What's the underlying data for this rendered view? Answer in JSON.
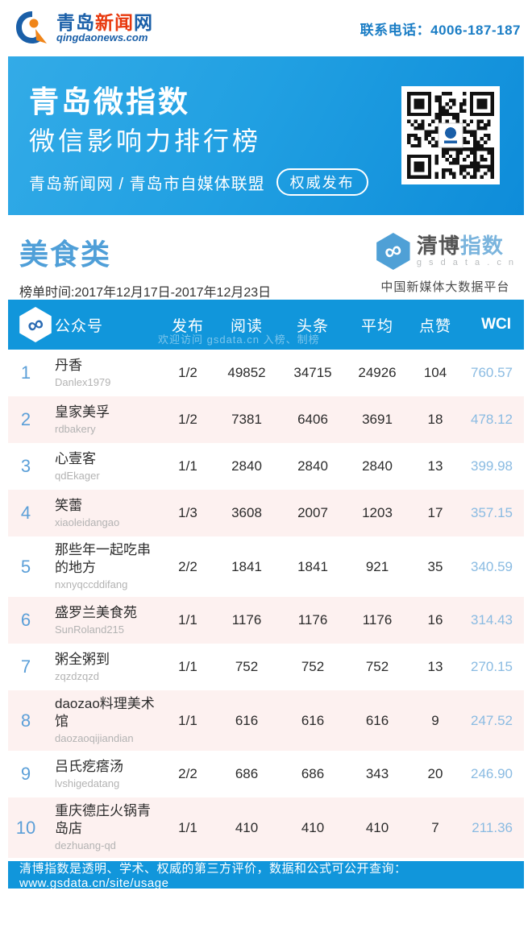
{
  "header": {
    "logo_part1": "青岛",
    "logo_part2": "新闻",
    "logo_part3": "网",
    "logo_domain": "qingdaonews.com",
    "contact": "联系电话：4006-187-187"
  },
  "banner": {
    "title": "青岛微指数",
    "subtitle": "微信影响力排行榜",
    "orgs": "青岛新闻网 / 青岛市自媒体联盟",
    "badge": "权威发布"
  },
  "report": {
    "category": "美食类",
    "period": "榜单时间:2017年12月17日-2017年12月23日"
  },
  "gsdata_logo": {
    "infinity_glyph": "∞",
    "brand_part1": "清博",
    "brand_part2": "指数",
    "domain": "g s d a t a . c n",
    "tagline": "中国新媒体大数据平台"
  },
  "table": {
    "columns": {
      "account": "公众号",
      "publish": "发布",
      "read": "阅读",
      "headline": "头条",
      "average": "平均",
      "likes": "点赞",
      "wci": "WCI"
    },
    "welcome": "欢迎访问 gsdata.cn 入榜、制榜",
    "rows": [
      {
        "rank": "1",
        "name": "丹香",
        "id": "Danlex1979",
        "publish": "1/2",
        "read": "49852",
        "headline": "34715",
        "average": "24926",
        "likes": "104",
        "wci": "760.57"
      },
      {
        "rank": "2",
        "name": "皇家美孚",
        "id": "rdbakery",
        "publish": "1/2",
        "read": "7381",
        "headline": "6406",
        "average": "3691",
        "likes": "18",
        "wci": "478.12"
      },
      {
        "rank": "3",
        "name": "心壹客",
        "id": "qdEkager",
        "publish": "1/1",
        "read": "2840",
        "headline": "2840",
        "average": "2840",
        "likes": "13",
        "wci": "399.98"
      },
      {
        "rank": "4",
        "name": "笑蕾",
        "id": "xiaoleidangao",
        "publish": "1/3",
        "read": "3608",
        "headline": "2007",
        "average": "1203",
        "likes": "17",
        "wci": "357.15"
      },
      {
        "rank": "5",
        "name": "那些年一起吃串的地方",
        "id": "nxnyqccddifang",
        "publish": "2/2",
        "read": "1841",
        "headline": "1841",
        "average": "921",
        "likes": "35",
        "wci": "340.59"
      },
      {
        "rank": "6",
        "name": "盛罗兰美食苑",
        "id": "SunRoland215",
        "publish": "1/1",
        "read": "1176",
        "headline": "1176",
        "average": "1176",
        "likes": "16",
        "wci": "314.43"
      },
      {
        "rank": "7",
        "name": "粥全粥到",
        "id": "zqzdzqzd",
        "publish": "1/1",
        "read": "752",
        "headline": "752",
        "average": "752",
        "likes": "13",
        "wci": "270.15"
      },
      {
        "rank": "8",
        "name": "daozao料理美术馆",
        "id": "daozaoqijiandian",
        "publish": "1/1",
        "read": "616",
        "headline": "616",
        "average": "616",
        "likes": "9",
        "wci": "247.52"
      },
      {
        "rank": "9",
        "name": "吕氏疙瘩汤",
        "id": "lvshigedatang",
        "publish": "2/2",
        "read": "686",
        "headline": "686",
        "average": "343",
        "likes": "20",
        "wci": "246.90"
      },
      {
        "rank": "10",
        "name": "重庆德庄火锅青岛店",
        "id": "dezhuang-qd",
        "publish": "1/1",
        "read": "410",
        "headline": "410",
        "average": "410",
        "likes": "7",
        "wci": "211.36"
      }
    ]
  },
  "footer": {
    "text": "清博指数是透明、学术、权威的第三方评价，数据和公式可公开查询：www.gsdata.cn/site/usage"
  },
  "colors": {
    "primary_blue": "#1196db",
    "banner_gradient_start": "#33abe7",
    "banner_gradient_end": "#0e8cd9",
    "category_title_blue": "#4f9fd8",
    "rank_blue": "#5b9fd8",
    "wci_blue": "#8abbe2",
    "alt_row_pink": "#fdf1f0",
    "brand_red": "#e8380d",
    "brand_navy": "#1a5fa8"
  }
}
